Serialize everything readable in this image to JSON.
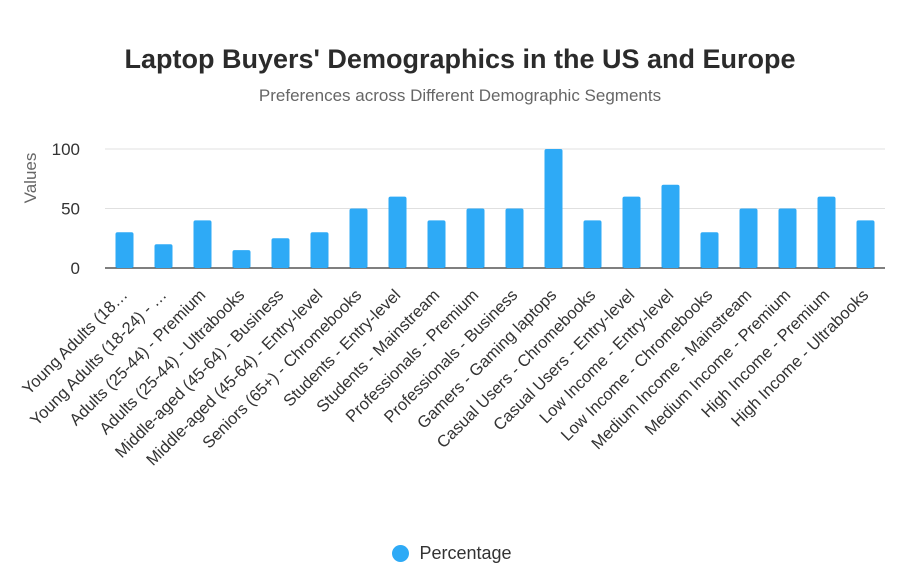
{
  "chart_data": {
    "type": "bar",
    "title": "Laptop Buyers' Demographics in the US and Europe",
    "subtitle": "Preferences across Different Demographic Segments",
    "ylabel": "Values",
    "xlabel": "",
    "ylim": [
      0,
      100
    ],
    "yticks": [
      "0",
      "50",
      "100"
    ],
    "grid": true,
    "legend_position": "bottom",
    "categories": [
      "Young Adults (18…",
      "Young Adults (18-24) - …",
      "Adults (25-44) - Premium",
      "Adults (25-44) - Ultrabooks",
      "Middle-aged (45-64) - Business",
      "Middle-aged (45-64) - Entry-level",
      "Seniors (65+) - Chromebooks",
      "Students - Entry-level",
      "Students - Mainstream",
      "Professionals - Premium",
      "Professionals - Business",
      "Gamers - Gaming laptops",
      "Casual Users - Chromebooks",
      "Casual Users - Entry-level",
      "Low Income - Entry-level",
      "Low Income - Chromebooks",
      "Medium Income - Mainstream",
      "Medium Income - Premium",
      "High Income - Premium",
      "High Income - Ultrabooks"
    ],
    "series": [
      {
        "name": "Percentage",
        "color": "#2eaaf6",
        "values": [
          30,
          20,
          40,
          15,
          25,
          30,
          50,
          60,
          40,
          50,
          50,
          100,
          40,
          60,
          70,
          30,
          50,
          50,
          60,
          40
        ]
      }
    ]
  }
}
